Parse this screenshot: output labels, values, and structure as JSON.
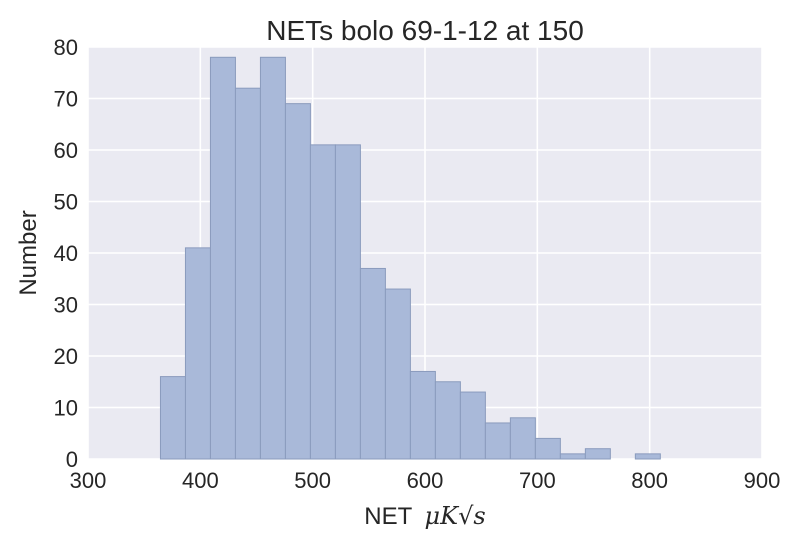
{
  "chart_data": {
    "type": "bar",
    "title": "NETs bolo 69-1-12 at 150",
    "xlabel": "NET",
    "xlabel_math": "μK√s",
    "ylabel": "Number",
    "xlim": [
      300,
      900
    ],
    "ylim": [
      0,
      80
    ],
    "xticks": [
      "300",
      "400",
      "500",
      "600",
      "700",
      "800",
      "900"
    ],
    "yticks": [
      "0",
      "10",
      "20",
      "30",
      "40",
      "50",
      "60",
      "70",
      "80"
    ],
    "grid": true,
    "bins": [
      {
        "start": 364.5,
        "end": 386.75,
        "count": 16
      },
      {
        "start": 386.75,
        "end": 409.0,
        "count": 41
      },
      {
        "start": 409.0,
        "end": 431.25,
        "count": 78
      },
      {
        "start": 431.25,
        "end": 453.5,
        "count": 72
      },
      {
        "start": 453.5,
        "end": 475.75,
        "count": 78
      },
      {
        "start": 475.75,
        "end": 498.0,
        "count": 69
      },
      {
        "start": 498.0,
        "end": 520.25,
        "count": 61
      },
      {
        "start": 520.25,
        "end": 542.5,
        "count": 61
      },
      {
        "start": 542.5,
        "end": 564.75,
        "count": 37
      },
      {
        "start": 564.75,
        "end": 587.0,
        "count": 33
      },
      {
        "start": 587.0,
        "end": 609.25,
        "count": 17
      },
      {
        "start": 609.25,
        "end": 631.5,
        "count": 15
      },
      {
        "start": 631.5,
        "end": 653.75,
        "count": 13
      },
      {
        "start": 653.75,
        "end": 676.0,
        "count": 7
      },
      {
        "start": 676.0,
        "end": 698.25,
        "count": 8
      },
      {
        "start": 698.25,
        "end": 720.5,
        "count": 4
      },
      {
        "start": 720.5,
        "end": 742.75,
        "count": 1
      },
      {
        "start": 742.75,
        "end": 765.0,
        "count": 2
      },
      {
        "start": 765.0,
        "end": 787.25,
        "count": 0
      },
      {
        "start": 787.25,
        "end": 809.5,
        "count": 1
      }
    ],
    "colors": {
      "bar_fill": "#a9b9d9",
      "bar_stroke": "#8a9bbd",
      "axes_bg": "#eaeaf2",
      "grid": "#ffffff",
      "text": "#262626"
    }
  }
}
